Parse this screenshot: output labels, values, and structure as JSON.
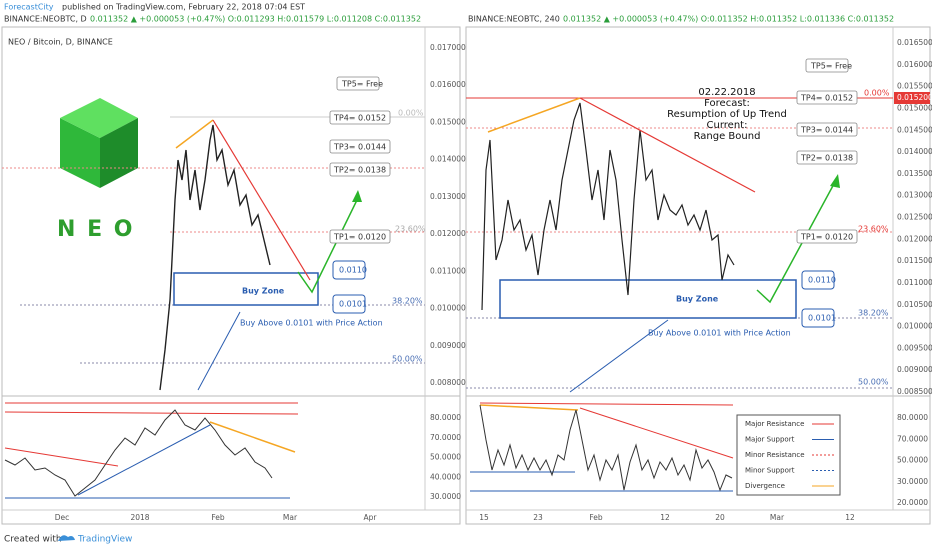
{
  "header": {
    "author": "ForecastCity",
    "published": "published on TradingView.com, February 22, 2018 07:04 EST"
  },
  "left": {
    "ticker": "BINANCE:NEOBTC, D",
    "quote": "0.011352 ▲ +0.000053 (+0.47%) O:0.011293 H:0.011579 L:0.011208 C:0.011352",
    "title": "NEO / Bitcoin, D, BINANCE",
    "logo": "N E O",
    "price_ticks": [
      "0.017000",
      "0.016000",
      "0.015000",
      "0.014000",
      "0.013000",
      "0.012000",
      "0.011000",
      "0.010000",
      "0.009000",
      "0.008000"
    ],
    "osc_ticks": [
      "80.0000",
      "70.0000",
      "50.0000",
      "40.0000",
      "30.0000"
    ],
    "x_ticks": [
      "Dec",
      "2018",
      "Feb",
      "Mar",
      "Apr"
    ],
    "targets": [
      "TP5= Free",
      "TP4= 0.0152",
      "TP3= 0.0144",
      "TP2= 0.0138",
      "TP1= 0.0120"
    ],
    "zone": {
      "top": "0.0110",
      "bottom": "0.0101",
      "label": "Buy Zone",
      "note": "Buy Above 0.0101 with Price Action"
    },
    "fib": [
      "0.00%",
      "23.60%",
      "38.20%",
      "50.00%"
    ]
  },
  "right": {
    "ticker": "BINANCE:NEOBTC, 240",
    "quote": "0.011352 ▲ +0.000053 (+0.47%) O:0.011352 H:0.011352 L:0.011336 C:0.011352",
    "forecast": [
      "02.22.2018",
      "Forecast:",
      "Resumption of Up Trend",
      "Current:",
      "Range Bound"
    ],
    "price_ticks": [
      "0.016500",
      "0.016000",
      "0.015500",
      "0.015000",
      "0.014500",
      "0.014000",
      "0.013500",
      "0.013000",
      "0.012500",
      "0.012000",
      "0.011500",
      "0.011000",
      "0.010500",
      "0.010000",
      "0.009500",
      "0.009000",
      "0.008500"
    ],
    "last_price": "0.015200",
    "osc_ticks": [
      "80.0000",
      "70.0000",
      "50.0000",
      "30.0000",
      "20.0000"
    ],
    "x_ticks": [
      "15",
      "23",
      "Feb",
      "12",
      "20",
      "Mar",
      "12"
    ],
    "targets": [
      "TP5= Free",
      "TP4= 0.0152",
      "TP3= 0.0144",
      "TP2= 0.0138",
      "TP1= 0.0120"
    ],
    "zone": {
      "top": "0.0110",
      "bottom": "0.0101",
      "label": "Buy Zone",
      "note": "Buy Above 0.0101 with Price Action"
    },
    "fib": [
      "0.00%",
      "23.60%",
      "38.20%",
      "50.00%"
    ],
    "legend": [
      "Major Resistance",
      "Major Support",
      "Minor Resistance",
      "Minor Support",
      "Divergence"
    ]
  },
  "footer": {
    "created": "Created with",
    "brand": "TradingView"
  }
}
